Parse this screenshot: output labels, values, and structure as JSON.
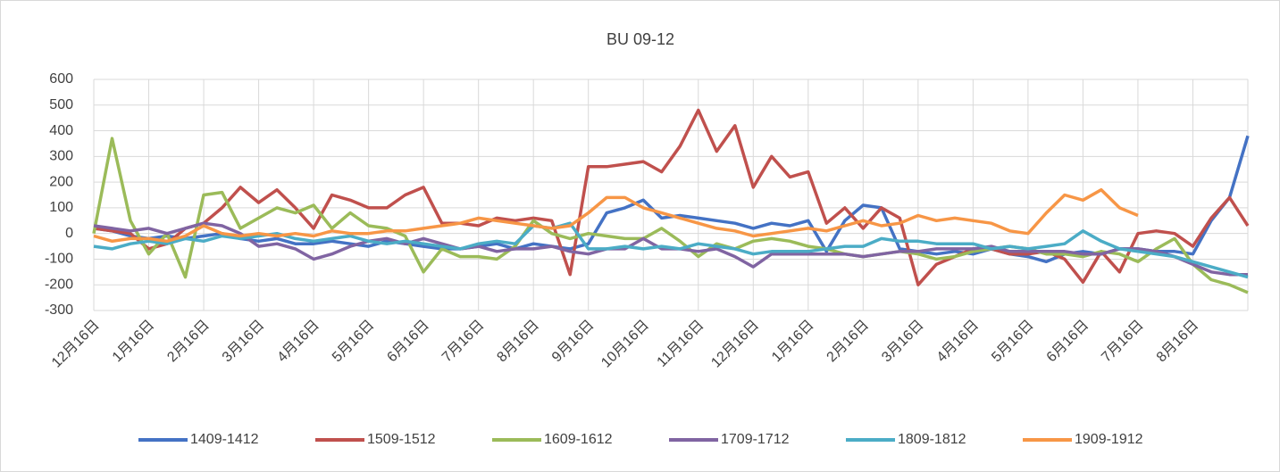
{
  "chart_data": {
    "type": "line",
    "title": "BU 09-12",
    "categories": [
      "12月16日",
      null,
      null,
      "1月16日",
      null,
      null,
      "2月16日",
      null,
      null,
      "3月16日",
      null,
      null,
      "4月16日",
      null,
      null,
      "5月16日",
      null,
      null,
      "6月16日",
      null,
      null,
      "7月16日",
      null,
      null,
      "8月16日",
      null,
      null,
      "9月16日",
      null,
      null,
      "10月16日",
      null,
      null,
      "11月16日",
      null,
      null,
      "12月16日",
      null,
      null,
      "1月16日",
      null,
      null,
      "2月16日",
      null,
      null,
      "3月16日",
      null,
      null,
      "4月16日",
      null,
      null,
      "5月16日",
      null,
      null,
      "6月16日",
      null,
      null,
      "7月16日",
      null,
      null,
      "8月16日",
      null,
      null,
      null
    ],
    "series": [
      {
        "name": "1409-1412",
        "color": "#4472c4",
        "values": [
          20,
          10,
          -10,
          -20,
          -10,
          -20,
          -10,
          0,
          -20,
          -30,
          -20,
          -40,
          -40,
          -30,
          -40,
          -50,
          -30,
          -40,
          -50,
          -60,
          -60,
          -50,
          -40,
          -60,
          -40,
          -50,
          -60,
          -40,
          80,
          100,
          130,
          60,
          70,
          60,
          50,
          40,
          20,
          40,
          30,
          50,
          -70,
          50,
          110,
          100,
          -60,
          -70,
          -80,
          -70,
          -80,
          -60,
          -80,
          -90,
          -110,
          -80,
          -70,
          -80,
          -60,
          -60,
          -70,
          -70,
          -80,
          50,
          140,
          380
        ]
      },
      {
        "name": "1509-1512",
        "color": "#c0504d",
        "values": [
          20,
          10,
          0,
          -60,
          -40,
          20,
          40,
          100,
          180,
          120,
          170,
          100,
          20,
          150,
          130,
          100,
          100,
          150,
          180,
          40,
          40,
          30,
          60,
          50,
          60,
          50,
          -160,
          260,
          260,
          270,
          280,
          240,
          340,
          480,
          320,
          420,
          180,
          300,
          220,
          240,
          40,
          100,
          20,
          100,
          60,
          -200,
          -120,
          -90,
          -60,
          -60,
          -80,
          -80,
          -70,
          -100,
          -190,
          -70,
          -150,
          0,
          10,
          0,
          -50,
          60,
          140,
          30
        ]
      },
      {
        "name": "1609-1612",
        "color": "#9bbb59",
        "values": [
          0,
          370,
          50,
          -80,
          0,
          -170,
          150,
          160,
          20,
          60,
          100,
          80,
          110,
          20,
          80,
          30,
          20,
          -10,
          -150,
          -60,
          -90,
          -90,
          -100,
          -50,
          50,
          0,
          -20,
          0,
          -10,
          -20,
          -20,
          20,
          -30,
          -90,
          -40,
          -60,
          -30,
          -20,
          -30,
          -50,
          -60,
          -80,
          -90,
          -80,
          -70,
          -80,
          -100,
          -90,
          -70,
          -60,
          -50,
          -60,
          -80,
          -80,
          -90,
          -70,
          -80,
          -110,
          -60,
          -20,
          -120,
          -180,
          -200,
          -230
        ]
      },
      {
        "name": "1709-1712",
        "color": "#8064a2",
        "values": [
          30,
          20,
          10,
          20,
          0,
          20,
          40,
          30,
          0,
          -50,
          -40,
          -60,
          -100,
          -80,
          -50,
          -30,
          -20,
          -40,
          -20,
          -40,
          -60,
          -50,
          -70,
          -60,
          -60,
          -50,
          -70,
          -80,
          -60,
          -60,
          -20,
          -60,
          -60,
          -70,
          -60,
          -90,
          -130,
          -80,
          -80,
          -80,
          -80,
          -80,
          -90,
          -80,
          -70,
          -70,
          -60,
          -60,
          -60,
          -50,
          -70,
          -70,
          -70,
          -70,
          -80,
          -80,
          -60,
          -60,
          -70,
          -90,
          -120,
          -150,
          -160,
          -160
        ]
      },
      {
        "name": "1809-1812",
        "color": "#4bacc6",
        "values": [
          -50,
          -60,
          -40,
          -30,
          -40,
          -20,
          -30,
          -10,
          -20,
          -10,
          0,
          -20,
          -30,
          -20,
          -10,
          -30,
          -40,
          -30,
          -40,
          -50,
          -60,
          -40,
          -30,
          -40,
          30,
          20,
          40,
          -60,
          -60,
          -50,
          -60,
          -50,
          -60,
          -40,
          -50,
          -60,
          -80,
          -70,
          -70,
          -70,
          -60,
          -50,
          -50,
          -20,
          -30,
          -30,
          -40,
          -40,
          -40,
          -60,
          -50,
          -60,
          -50,
          -40,
          10,
          -30,
          -60,
          -70,
          -80,
          -90,
          -110,
          -130,
          -150,
          -170
        ]
      },
      {
        "name": "1909-1912",
        "color": "#f79646",
        "values": [
          -10,
          -30,
          -20,
          -20,
          -30,
          -10,
          30,
          0,
          -10,
          0,
          -10,
          0,
          -10,
          10,
          0,
          0,
          10,
          10,
          20,
          30,
          40,
          60,
          50,
          40,
          30,
          20,
          30,
          80,
          140,
          140,
          100,
          80,
          60,
          40,
          20,
          10,
          -10,
          0,
          10,
          20,
          10,
          30,
          50,
          30,
          40,
          70,
          50,
          60,
          50,
          40,
          10,
          0,
          80,
          150,
          130,
          170,
          100,
          70,
          null,
          null,
          null,
          null,
          null,
          null
        ]
      }
    ],
    "ylim": [
      -300,
      600
    ],
    "yticks": [
      -300,
      -200,
      -100,
      0,
      100,
      200,
      300,
      400,
      500,
      600
    ],
    "grid": true,
    "legend": "bottom"
  }
}
